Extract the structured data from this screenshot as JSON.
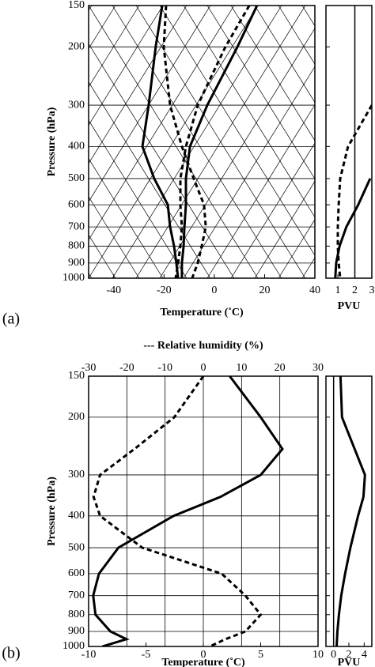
{
  "chart_data": [
    {
      "type": "line",
      "panel_label": "(a)",
      "xlabel": "Temperature (˚C)",
      "ylabel": "Pressure (hPa)",
      "y": [
        150,
        200,
        300,
        400,
        500,
        600,
        700,
        800,
        900,
        1000
      ],
      "ylim": [
        1000,
        150
      ],
      "ylog": true,
      "yticks": [
        150,
        200,
        300,
        400,
        500,
        600,
        700,
        800,
        900,
        1000
      ],
      "xlim": [
        -50,
        40
      ],
      "xticks": [
        -40,
        -20,
        0,
        20,
        40
      ],
      "grid": true,
      "skewed_grid": true,
      "series": [
        {
          "color": "#000000",
          "style": "solid",
          "values": [
            -20.7,
            -23.3,
            -26.1,
            -28.6,
            -23.9,
            -18.5,
            -17.6,
            -16,
            -15.1,
            -14.4
          ]
        },
        {
          "color": "#000000",
          "style": "dashed",
          "values": [
            -19.2,
            -20.1,
            -17.6,
            -12.9,
            -8.2,
            -4.1,
            -3.4,
            -5,
            -6.6,
            -8.8
          ]
        },
        {
          "color": "#000000",
          "style": "solid",
          "values": [
            17,
            9.2,
            -2.8,
            -9.7,
            -11.3,
            -11.3,
            -11.9,
            -12.2,
            -12.9,
            -12.9
          ]
        },
        {
          "color": "#000000",
          "style": "dashed",
          "values": [
            13.9,
            4.4,
            -6.6,
            -11.3,
            -13.5,
            -13.5,
            -12.9,
            -13.5,
            -14.4,
            -15.4
          ]
        }
      ]
    },
    {
      "type": "line",
      "xlabel": "PVU",
      "y": [
        150,
        200,
        300,
        400,
        500,
        600,
        700,
        800,
        900,
        1000
      ],
      "ylim": [
        1000,
        150
      ],
      "ylog": true,
      "yticks": [
        150,
        200,
        300,
        400,
        500,
        600,
        700,
        800,
        900,
        1000
      ],
      "xlim": [
        0.3,
        3
      ],
      "xticks": [
        1,
        2,
        3
      ],
      "vline": 2,
      "series": [
        {
          "color": "#000000",
          "style": "dashed",
          "values": [
            null,
            null,
            3,
            1.6,
            1.14,
            1.05,
            1,
            1,
            1.05,
            1.14
          ]
        },
        {
          "color": "#000000",
          "style": "solid",
          "values": [
            null,
            null,
            null,
            null,
            2.9,
            2.2,
            1.5,
            1.1,
            0.9,
            0.85
          ]
        }
      ]
    },
    {
      "type": "line",
      "panel_label": "(b)",
      "title": "--- Relative humidity (%)",
      "xlabel": "Temperature (˚C)",
      "ylabel": "Pressure (hPa)",
      "y": [
        150,
        200,
        250,
        300,
        350,
        400,
        500,
        600,
        700,
        800,
        900,
        950,
        1000
      ],
      "ylim": [
        1000,
        150
      ],
      "ylog": true,
      "yticks": [
        150,
        200,
        300,
        400,
        500,
        600,
        700,
        800,
        900,
        1000
      ],
      "xlim": [
        -10,
        10
      ],
      "xticks": [
        -10,
        -5,
        0,
        5,
        10
      ],
      "x2lim": [
        -30,
        30
      ],
      "x2ticks": [
        -30,
        -20,
        -10,
        0,
        10,
        20,
        30
      ],
      "grid": true,
      "series": [
        {
          "color": "#000000",
          "style": "solid",
          "values": [
            2.3,
            5,
            6.9,
            5,
            1.5,
            -2.6,
            -7.4,
            -9.1,
            -9.6,
            -9.4,
            -8.1,
            -6.7,
            -8.8
          ]
        },
        {
          "color": "#000000",
          "style": "dashed",
          "axis": "x2",
          "values": [
            0,
            -7.6,
            -18,
            -27,
            -28.7,
            -27,
            -16,
            4.8,
            11,
            15,
            11,
            5.8,
            1.7
          ]
        }
      ]
    },
    {
      "type": "line",
      "xlabel": "PVU",
      "y": [
        150,
        200,
        300,
        350,
        400,
        500,
        600,
        700,
        800,
        900,
        1000
      ],
      "ylim": [
        1000,
        150
      ],
      "ylog": true,
      "yticks": [
        150,
        200,
        300,
        400,
        500,
        600,
        700,
        800,
        900,
        1000
      ],
      "xlim": [
        -1,
        5
      ],
      "xticks": [
        0,
        2,
        4
      ],
      "vline": 0,
      "series": [
        {
          "color": "#000000",
          "style": "solid",
          "values": [
            0.9,
            1.1,
            4.1,
            3.9,
            3.2,
            2.2,
            1.5,
            1,
            0.7,
            0.5,
            0.4
          ]
        }
      ]
    }
  ]
}
